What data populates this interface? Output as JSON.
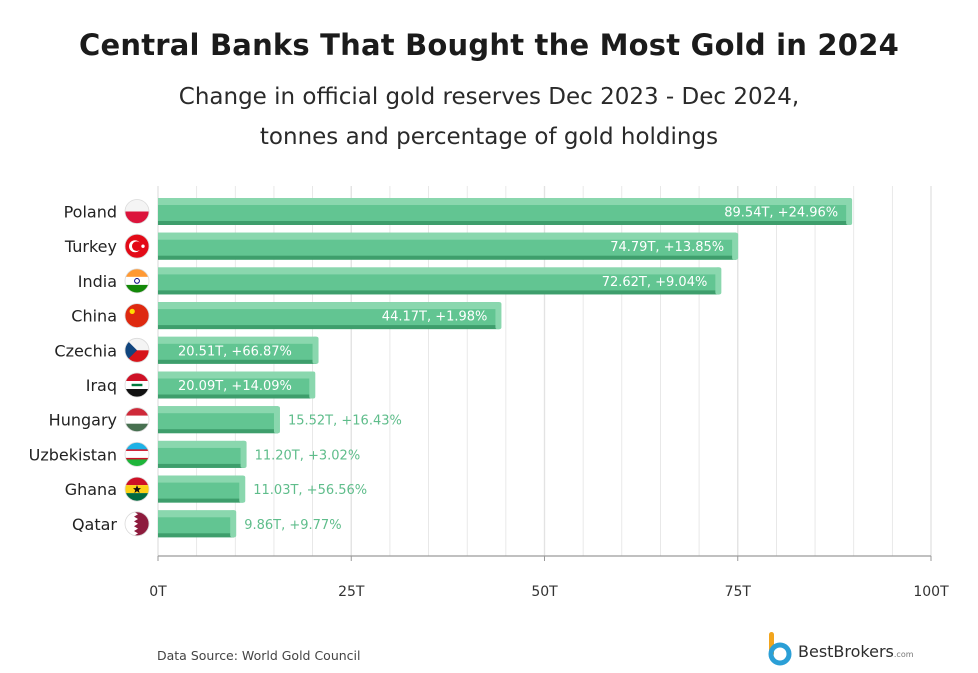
{
  "chart_data": {
    "type": "bar",
    "orientation": "horizontal",
    "title": "Central Banks That Bought the Most Gold in 2024",
    "subtitle_line1": "Change in official gold reserves Dec 2023 - Dec 2024,",
    "subtitle_line2": "tonnes and percentage of gold holdings",
    "categories": [
      "Poland",
      "Turkey",
      "India",
      "China",
      "Czechia",
      "Iraq",
      "Hungary",
      "Uzbekistan",
      "Ghana",
      "Qatar"
    ],
    "values": [
      89.54,
      74.79,
      72.62,
      44.17,
      20.51,
      20.09,
      15.52,
      11.2,
      11.03,
      9.86
    ],
    "data_labels": [
      "89.54T, +24.96%",
      "74.79T, +13.85%",
      "72.62T, +9.04%",
      "44.17T, +1.98%",
      "20.51T, +66.87%",
      "20.09T, +14.09%",
      "15.52T, +16.43%",
      "11.20T, +3.02%",
      "11.03T, +56.56%",
      "9.86T, +9.77%"
    ],
    "xlim": [
      0,
      100
    ],
    "xticks": [
      0,
      25,
      50,
      75,
      100
    ],
    "xtick_labels": [
      "0T",
      "25T",
      "50T",
      "75T",
      "100T"
    ],
    "xlabel": "",
    "ylabel": "",
    "grid": true,
    "colors": {
      "bar": "#62c592",
      "bar_light": "#8ad7ae",
      "bar_dark": "#3e9e6c",
      "label_outside": "#5fbd8b",
      "grid": "#e3e3e3",
      "axis": "#9a9a9a"
    }
  },
  "flags": [
    "poland-flag-icon",
    "turkey-flag-icon",
    "india-flag-icon",
    "china-flag-icon",
    "czechia-flag-icon",
    "iraq-flag-icon",
    "hungary-flag-icon",
    "uzbekistan-flag-icon",
    "ghana-flag-icon",
    "qatar-flag-icon"
  ],
  "footer": {
    "source": "Data Source: World Gold Council",
    "brand": "BestBrokers",
    "brand_suffix": ".com"
  }
}
